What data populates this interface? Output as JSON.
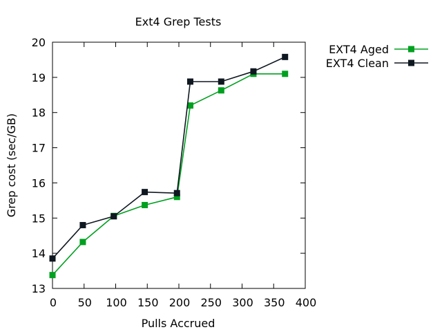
{
  "chart_data": {
    "type": "line",
    "title": "Ext4 Grep Tests",
    "xlabel": "Pulls Accrued",
    "ylabel": "Grep cost (sec/GB)",
    "xlim": [
      0,
      400
    ],
    "ylim": [
      13,
      20
    ],
    "xticks": [
      0,
      50,
      100,
      150,
      200,
      250,
      300,
      350,
      400
    ],
    "yticks": [
      13,
      14,
      15,
      16,
      17,
      18,
      19,
      20
    ],
    "grid": false,
    "legend_position": "top-right-outside",
    "series": [
      {
        "name": "EXT4 Aged",
        "color": "#00a020",
        "marker": "square",
        "points": [
          [
            0,
            13.38
          ],
          [
            48,
            14.32
          ],
          [
            97,
            15.06
          ],
          [
            146,
            15.37
          ],
          [
            197,
            15.6
          ],
          [
            218,
            18.2
          ],
          [
            267,
            18.63
          ],
          [
            318,
            19.1
          ],
          [
            368,
            19.1
          ]
        ]
      },
      {
        "name": "EXT4 Clean",
        "color": "#0f1720",
        "marker": "square",
        "points": [
          [
            0,
            13.85
          ],
          [
            48,
            14.8
          ],
          [
            97,
            15.05
          ],
          [
            146,
            15.74
          ],
          [
            197,
            15.71
          ],
          [
            218,
            18.88
          ],
          [
            267,
            18.88
          ],
          [
            318,
            19.17
          ],
          [
            368,
            19.58
          ]
        ]
      }
    ]
  }
}
